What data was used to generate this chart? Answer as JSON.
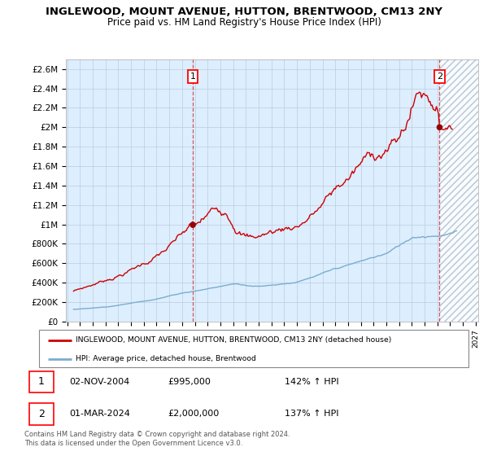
{
  "title": "INGLEWOOD, MOUNT AVENUE, HUTTON, BRENTWOOD, CM13 2NY",
  "subtitle": "Price paid vs. HM Land Registry's House Price Index (HPI)",
  "ylabel_ticks": [
    "£0",
    "£200K",
    "£400K",
    "£600K",
    "£800K",
    "£1M",
    "£1.2M",
    "£1.4M",
    "£1.6M",
    "£1.8M",
    "£2M",
    "£2.2M",
    "£2.4M",
    "£2.6M"
  ],
  "ytick_values": [
    0,
    200000,
    400000,
    600000,
    800000,
    1000000,
    1200000,
    1400000,
    1600000,
    1800000,
    2000000,
    2200000,
    2400000,
    2600000
  ],
  "ylim": [
    0,
    2700000
  ],
  "xlim_start": 1994.9,
  "xlim_end": 2027.2,
  "red_line_color": "#cc0000",
  "blue_line_color": "#7aadcc",
  "marker_color": "#990000",
  "bg_fill_color": "#ddeeff",
  "point1_x": 2004.84,
  "point1_y": 995000,
  "point2_x": 2024.17,
  "point2_y": 2000000,
  "vline1_x": 2004.84,
  "vline2_x": 2024.17,
  "legend_red_label": "INGLEWOOD, MOUNT AVENUE, HUTTON, BRENTWOOD, CM13 2NY (detached house)",
  "legend_blue_label": "HPI: Average price, detached house, Brentwood",
  "table_row1": [
    "1",
    "02-NOV-2004",
    "£995,000",
    "142% ↑ HPI"
  ],
  "table_row2": [
    "2",
    "01-MAR-2024",
    "£2,000,000",
    "137% ↑ HPI"
  ],
  "footer": "Contains HM Land Registry data © Crown copyright and database right 2024.\nThis data is licensed under the Open Government Licence v3.0.",
  "grid_color": "#bbccdd",
  "hatch_region_color": "#ccddee"
}
